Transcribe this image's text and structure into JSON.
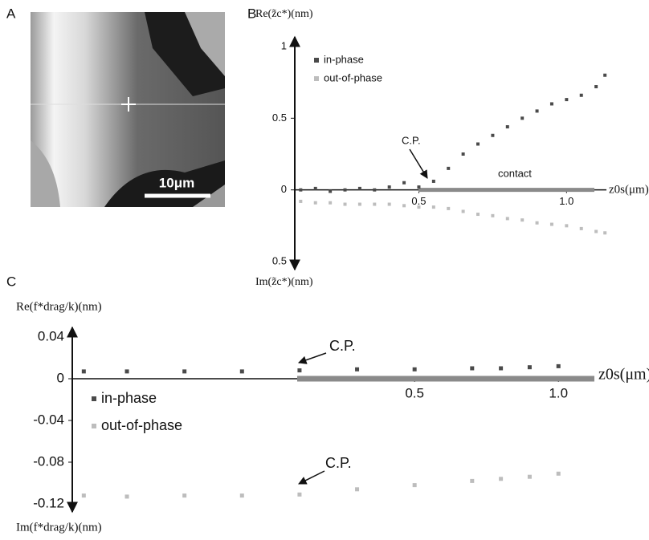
{
  "panels": {
    "A": {
      "label": "A",
      "scale_bar": "10μm"
    }
  },
  "chart_data": [
    {
      "type": "scatter",
      "panel": "B",
      "ylabel": "Re(z̃c*)(nm)",
      "ylabel_lower": "Im(z̃c*)(nm)",
      "xlabel": "z0s(μm)",
      "xlim": [
        0.08,
        1.135
      ],
      "ylim": [
        -0.5,
        1
      ],
      "xticks": [
        0.5,
        {
          "value": 1,
          "label": "1.0"
        }
      ],
      "yticks": [
        {
          "value": -0.5,
          "label": "0.5"
        },
        0,
        0.5,
        1
      ],
      "annotations": [
        "C.P.",
        "contact"
      ],
      "series": [
        {
          "name": "in-phase",
          "color": "#4a4a4a",
          "x": [
            0.1,
            0.15,
            0.2,
            0.25,
            0.3,
            0.35,
            0.4,
            0.45,
            0.5,
            0.55,
            0.6,
            0.65,
            0.7,
            0.75,
            0.8,
            0.85,
            0.9,
            0.95,
            1.0,
            1.05,
            1.1,
            1.13
          ],
          "values": [
            0.0,
            0.01,
            -0.01,
            0.0,
            0.01,
            0.0,
            0.02,
            0.05,
            0.02,
            0.06,
            0.15,
            0.25,
            0.32,
            0.38,
            0.44,
            0.5,
            0.55,
            0.6,
            0.63,
            0.66,
            0.72,
            0.8
          ]
        },
        {
          "name": "out-of-phase",
          "color": "#bdbdbd",
          "x": [
            0.1,
            0.15,
            0.2,
            0.25,
            0.3,
            0.35,
            0.4,
            0.45,
            0.5,
            0.55,
            0.6,
            0.65,
            0.7,
            0.75,
            0.8,
            0.85,
            0.9,
            0.95,
            1.0,
            1.05,
            1.1,
            1.13
          ],
          "values": [
            -0.08,
            -0.09,
            -0.09,
            -0.1,
            -0.1,
            -0.1,
            -0.1,
            -0.11,
            -0.12,
            -0.12,
            -0.13,
            -0.15,
            -0.17,
            -0.18,
            -0.2,
            -0.21,
            -0.23,
            -0.24,
            -0.25,
            -0.27,
            -0.29,
            -0.3
          ]
        }
      ]
    },
    {
      "type": "scatter",
      "panel": "C",
      "ylabel": "Re(f*drag/k)(nm)",
      "ylabel_lower": "Im(f*drag/k)(nm)",
      "xlabel": "z0s(μm)",
      "xlim": [
        -0.69,
        1.125
      ],
      "ylim": [
        -0.12,
        0.04
      ],
      "xticks": [
        0.5,
        {
          "value": 1,
          "label": "1.0"
        }
      ],
      "yticks": [
        0.04,
        0,
        -0.04,
        -0.08,
        -0.12
      ],
      "annotations": [
        "C.P.",
        "C.P."
      ],
      "series": [
        {
          "name": "in-phase",
          "color": "#4a4a4a",
          "x": [
            -0.65,
            -0.5,
            -0.3,
            -0.1,
            0.1,
            0.3,
            0.5,
            0.7,
            0.8,
            0.9,
            1.0
          ],
          "values": [
            0.007,
            0.007,
            0.007,
            0.007,
            0.008,
            0.009,
            0.009,
            0.01,
            0.01,
            0.011,
            0.012
          ]
        },
        {
          "name": "out-of-phase",
          "color": "#bdbdbd",
          "x": [
            -0.65,
            -0.5,
            -0.3,
            -0.1,
            0.1,
            0.3,
            0.5,
            0.7,
            0.8,
            0.9,
            1.0
          ],
          "values": [
            -0.112,
            -0.113,
            -0.112,
            -0.112,
            -0.111,
            -0.106,
            -0.102,
            -0.098,
            -0.096,
            -0.094,
            -0.091
          ]
        }
      ]
    }
  ]
}
